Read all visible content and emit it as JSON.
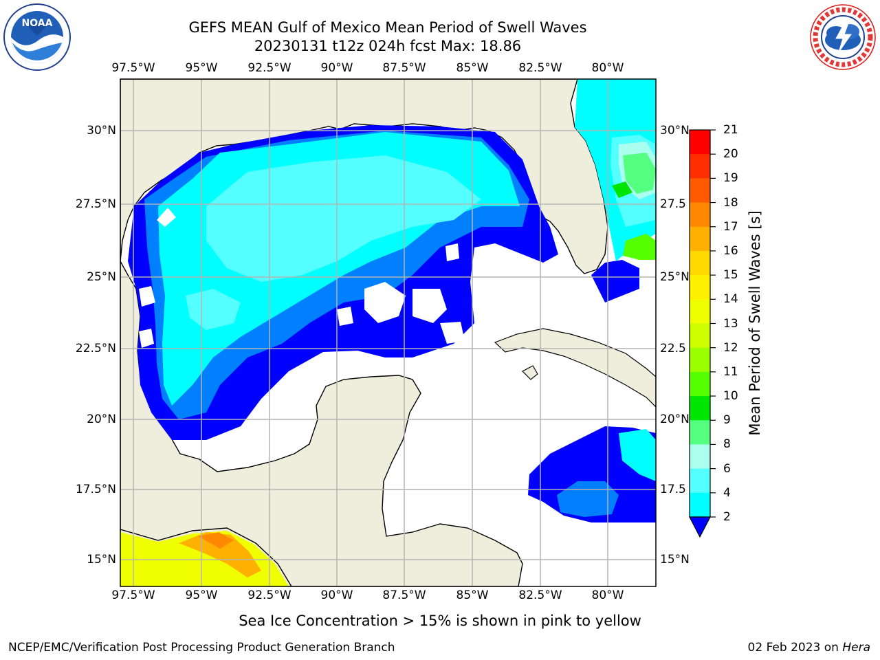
{
  "header": {
    "title_line1": "GEFS MEAN Gulf of Mexico Mean Period of Swell Waves",
    "title_line2": "20230131 t12z 024h fcst   Max: 18.86"
  },
  "logos": {
    "left": {
      "name": "noaa-logo",
      "text": "NOAA",
      "ring_text": "NATIONAL OCEANIC AND ATMOSPHERIC ADMINISTRATION · U.S. DEPARTMENT OF COMMERCE"
    },
    "right": {
      "name": "nws-logo",
      "ring_text": "NATIONAL WEATHER SERVICE"
    }
  },
  "map": {
    "lon_labels": [
      "97.5°W",
      "95°W",
      "92.5°W",
      "90°W",
      "87.5°W",
      "85°W",
      "82.5°W",
      "80°W"
    ],
    "lat_labels": [
      "30°N",
      "27.5°N",
      "25°N",
      "22.5°N",
      "20°N",
      "17.5°N",
      "15°N"
    ],
    "lat_labels_right": [
      "30°N",
      "27.5",
      "25°N",
      "22.5",
      "20°N",
      "17.5",
      "15°N"
    ],
    "colors": {
      "land": "#efeedc",
      "ocean_white": "#ffffff",
      "grid": "#b3b3b3"
    }
  },
  "colorbar": {
    "label": "Mean Period of Swell Waves [s]",
    "ticks": [
      "21",
      "20",
      "19",
      "18",
      "17",
      "16",
      "15",
      "14",
      "13",
      "12",
      "11",
      "10",
      "9",
      "8",
      "6",
      "4",
      "2"
    ],
    "colors": [
      "#ff0000",
      "#ff2e00",
      "#ff5a00",
      "#ff8800",
      "#ffb000",
      "#ffd900",
      "#fff000",
      "#f0ff00",
      "#cdff00",
      "#9cff00",
      "#55ff00",
      "#00e600",
      "#55ff80",
      "#aaffee",
      "#55ffff",
      "#00ffff",
      "#0080ff",
      "#0000ff"
    ]
  },
  "note": "Sea Ice Concentration > 15% is shown in pink to yellow",
  "footer": {
    "left": "NCEP/EMC/Verification Post Processing Product Generation Branch",
    "date": "02 Feb 2023 on ",
    "host": "Hera"
  }
}
